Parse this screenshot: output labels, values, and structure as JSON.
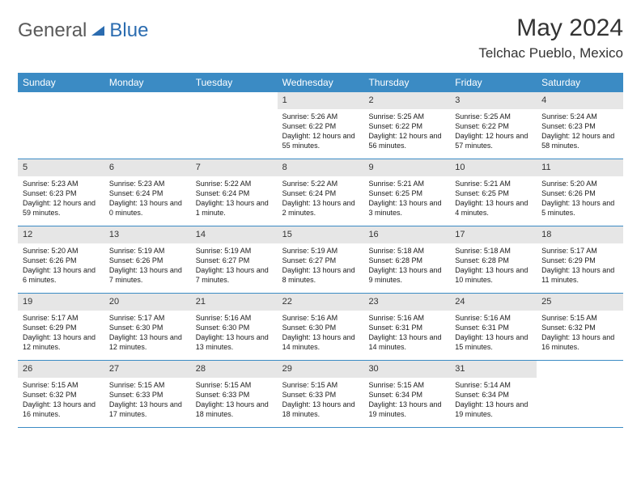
{
  "brand": {
    "part1": "General",
    "part2": "Blue"
  },
  "title": "May 2024",
  "location": "Telchac Pueblo, Mexico",
  "colors": {
    "header_bg": "#3b8bc4",
    "header_text": "#ffffff",
    "daynum_bg": "#e6e6e6",
    "border": "#3b8bc4",
    "brand_gray": "#5a5a5a",
    "brand_blue": "#2b6cb0"
  },
  "day_headers": [
    "Sunday",
    "Monday",
    "Tuesday",
    "Wednesday",
    "Thursday",
    "Friday",
    "Saturday"
  ],
  "weeks": [
    [
      {
        "n": "",
        "sr": "",
        "ss": "",
        "dl": ""
      },
      {
        "n": "",
        "sr": "",
        "ss": "",
        "dl": ""
      },
      {
        "n": "",
        "sr": "",
        "ss": "",
        "dl": ""
      },
      {
        "n": "1",
        "sr": "5:26 AM",
        "ss": "6:22 PM",
        "dl": "12 hours and 55 minutes."
      },
      {
        "n": "2",
        "sr": "5:25 AM",
        "ss": "6:22 PM",
        "dl": "12 hours and 56 minutes."
      },
      {
        "n": "3",
        "sr": "5:25 AM",
        "ss": "6:22 PM",
        "dl": "12 hours and 57 minutes."
      },
      {
        "n": "4",
        "sr": "5:24 AM",
        "ss": "6:23 PM",
        "dl": "12 hours and 58 minutes."
      }
    ],
    [
      {
        "n": "5",
        "sr": "5:23 AM",
        "ss": "6:23 PM",
        "dl": "12 hours and 59 minutes."
      },
      {
        "n": "6",
        "sr": "5:23 AM",
        "ss": "6:24 PM",
        "dl": "13 hours and 0 minutes."
      },
      {
        "n": "7",
        "sr": "5:22 AM",
        "ss": "6:24 PM",
        "dl": "13 hours and 1 minute."
      },
      {
        "n": "8",
        "sr": "5:22 AM",
        "ss": "6:24 PM",
        "dl": "13 hours and 2 minutes."
      },
      {
        "n": "9",
        "sr": "5:21 AM",
        "ss": "6:25 PM",
        "dl": "13 hours and 3 minutes."
      },
      {
        "n": "10",
        "sr": "5:21 AM",
        "ss": "6:25 PM",
        "dl": "13 hours and 4 minutes."
      },
      {
        "n": "11",
        "sr": "5:20 AM",
        "ss": "6:26 PM",
        "dl": "13 hours and 5 minutes."
      }
    ],
    [
      {
        "n": "12",
        "sr": "5:20 AM",
        "ss": "6:26 PM",
        "dl": "13 hours and 6 minutes."
      },
      {
        "n": "13",
        "sr": "5:19 AM",
        "ss": "6:26 PM",
        "dl": "13 hours and 7 minutes."
      },
      {
        "n": "14",
        "sr": "5:19 AM",
        "ss": "6:27 PM",
        "dl": "13 hours and 7 minutes."
      },
      {
        "n": "15",
        "sr": "5:19 AM",
        "ss": "6:27 PM",
        "dl": "13 hours and 8 minutes."
      },
      {
        "n": "16",
        "sr": "5:18 AM",
        "ss": "6:28 PM",
        "dl": "13 hours and 9 minutes."
      },
      {
        "n": "17",
        "sr": "5:18 AM",
        "ss": "6:28 PM",
        "dl": "13 hours and 10 minutes."
      },
      {
        "n": "18",
        "sr": "5:17 AM",
        "ss": "6:29 PM",
        "dl": "13 hours and 11 minutes."
      }
    ],
    [
      {
        "n": "19",
        "sr": "5:17 AM",
        "ss": "6:29 PM",
        "dl": "13 hours and 12 minutes."
      },
      {
        "n": "20",
        "sr": "5:17 AM",
        "ss": "6:30 PM",
        "dl": "13 hours and 12 minutes."
      },
      {
        "n": "21",
        "sr": "5:16 AM",
        "ss": "6:30 PM",
        "dl": "13 hours and 13 minutes."
      },
      {
        "n": "22",
        "sr": "5:16 AM",
        "ss": "6:30 PM",
        "dl": "13 hours and 14 minutes."
      },
      {
        "n": "23",
        "sr": "5:16 AM",
        "ss": "6:31 PM",
        "dl": "13 hours and 14 minutes."
      },
      {
        "n": "24",
        "sr": "5:16 AM",
        "ss": "6:31 PM",
        "dl": "13 hours and 15 minutes."
      },
      {
        "n": "25",
        "sr": "5:15 AM",
        "ss": "6:32 PM",
        "dl": "13 hours and 16 minutes."
      }
    ],
    [
      {
        "n": "26",
        "sr": "5:15 AM",
        "ss": "6:32 PM",
        "dl": "13 hours and 16 minutes."
      },
      {
        "n": "27",
        "sr": "5:15 AM",
        "ss": "6:33 PM",
        "dl": "13 hours and 17 minutes."
      },
      {
        "n": "28",
        "sr": "5:15 AM",
        "ss": "6:33 PM",
        "dl": "13 hours and 18 minutes."
      },
      {
        "n": "29",
        "sr": "5:15 AM",
        "ss": "6:33 PM",
        "dl": "13 hours and 18 minutes."
      },
      {
        "n": "30",
        "sr": "5:15 AM",
        "ss": "6:34 PM",
        "dl": "13 hours and 19 minutes."
      },
      {
        "n": "31",
        "sr": "5:14 AM",
        "ss": "6:34 PM",
        "dl": "13 hours and 19 minutes."
      },
      {
        "n": "",
        "sr": "",
        "ss": "",
        "dl": ""
      }
    ]
  ],
  "labels": {
    "sunrise": "Sunrise:",
    "sunset": "Sunset:",
    "daylight": "Daylight:"
  }
}
